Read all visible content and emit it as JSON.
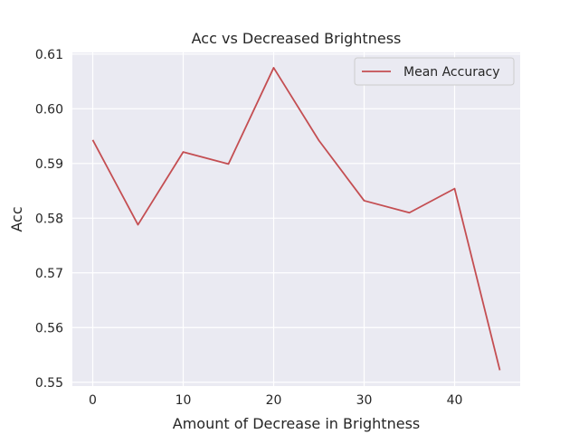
{
  "chart_data": {
    "type": "line",
    "title": "Acc vs Decreased Brightness",
    "xlabel": "Amount of Decrease in Brightness",
    "ylabel": "Acc",
    "x": [
      0,
      5,
      10,
      15,
      20,
      25,
      30,
      35,
      40,
      45
    ],
    "series": [
      {
        "name": "Mean Accuracy",
        "color": "#c44e52",
        "values": [
          0.5943,
          0.5788,
          0.5921,
          0.5899,
          0.6075,
          0.5942,
          0.5832,
          0.581,
          0.5854,
          0.5522
        ]
      }
    ],
    "xlim": [
      -2.25,
      47.25
    ],
    "ylim": [
      0.5493,
      0.6103
    ],
    "xticks": [
      0,
      10,
      20,
      30,
      40
    ],
    "xtick_labels": [
      "0",
      "10",
      "20",
      "30",
      "40"
    ],
    "yticks": [
      0.55,
      0.56,
      0.57,
      0.58,
      0.59,
      0.6,
      0.61
    ],
    "ytick_labels": [
      "0.55",
      "0.56",
      "0.57",
      "0.58",
      "0.59",
      "0.60",
      "0.61"
    ],
    "grid": true,
    "legend_position": "top-right",
    "background_color": "#eaeaf2",
    "grid_color": "#ffffff"
  }
}
